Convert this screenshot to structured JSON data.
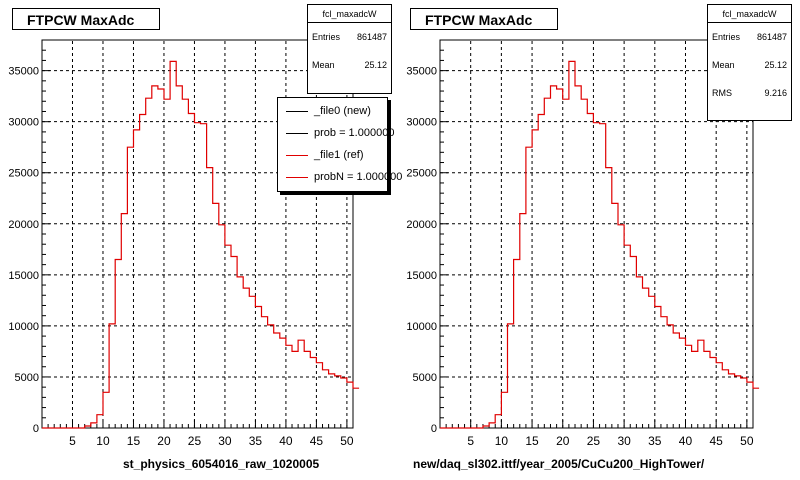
{
  "chart_data": [
    {
      "type": "bar",
      "title": "FTPCW MaxAdc",
      "xlabel": "st_physics_6054016_raw_1020005",
      "xlim": [
        0,
        51
      ],
      "ylim": [
        0,
        38000
      ],
      "x_ticks": [
        "5",
        "10",
        "15",
        "20",
        "25",
        "30",
        "35",
        "40",
        "45",
        "50"
      ],
      "y_ticks": [
        "0",
        "5000",
        "10000",
        "15000",
        "20000",
        "25000",
        "30000",
        "35000"
      ],
      "grid": true,
      "stats": {
        "name": "fcl_maxadcW",
        "entries_label": "Entries",
        "entries": "861487",
        "mean_label": "Mean",
        "mean": "25.12"
      },
      "legend": {
        "placement": "top-right",
        "entries": [
          {
            "label": "_file0 (new)",
            "color": "#000000"
          },
          {
            "label": "prob = 1.000000",
            "color": "#000000"
          },
          {
            "label": "_file1 (ref)",
            "color": "#e00000"
          },
          {
            "label": "probN = 1.000000",
            "color": "#e00000"
          }
        ]
      },
      "series": [
        {
          "color": "#e00000",
          "bin_edges_start": 0,
          "bin_width": 1,
          "values": [
            0,
            0,
            0,
            0,
            0,
            0,
            0,
            200,
            500,
            1300,
            3500,
            10200,
            16500,
            21000,
            27500,
            29200,
            30700,
            32300,
            33500,
            33200,
            32200,
            35900,
            33500,
            32200,
            30800,
            29900,
            29800,
            25500,
            22000,
            19900,
            17900,
            16800,
            14800,
            13700,
            12900,
            11900,
            10900,
            10100,
            9300,
            8800,
            8100,
            7500,
            8600,
            7500,
            6900,
            6400,
            5700,
            5300,
            5100,
            4900,
            4500,
            3900
          ]
        }
      ]
    },
    {
      "type": "bar",
      "title": "FTPCW MaxAdc",
      "xlabel": "new/daq_sl302.ittf/year_2005/CuCu200_HighTower/",
      "xlim": [
        0,
        51
      ],
      "ylim": [
        0,
        38000
      ],
      "x_ticks": [
        "5",
        "10",
        "15",
        "20",
        "25",
        "30",
        "35",
        "40",
        "45",
        "50"
      ],
      "y_ticks": [
        "0",
        "5000",
        "10000",
        "15000",
        "20000",
        "25000",
        "30000",
        "35000"
      ],
      "grid": true,
      "stats": {
        "name": "fcl_maxadcW",
        "entries_label": "Entries",
        "entries": "861487",
        "mean_label": "Mean",
        "mean": "25.12",
        "rms_label": "RMS",
        "rms": "9.216"
      },
      "series": [
        {
          "color": "#e00000",
          "bin_edges_start": 0,
          "bin_width": 1,
          "values": [
            0,
            0,
            0,
            0,
            0,
            0,
            0,
            200,
            500,
            1300,
            3500,
            10200,
            16500,
            21000,
            27500,
            29200,
            30700,
            32300,
            33500,
            33200,
            32200,
            35900,
            33500,
            32200,
            30800,
            29900,
            29800,
            25500,
            22000,
            19900,
            17900,
            16800,
            14800,
            13700,
            12900,
            11900,
            10900,
            10100,
            9300,
            8800,
            8100,
            7500,
            8600,
            7500,
            6900,
            6400,
            5700,
            5300,
            5100,
            4900,
            4500,
            3900
          ]
        }
      ]
    }
  ]
}
